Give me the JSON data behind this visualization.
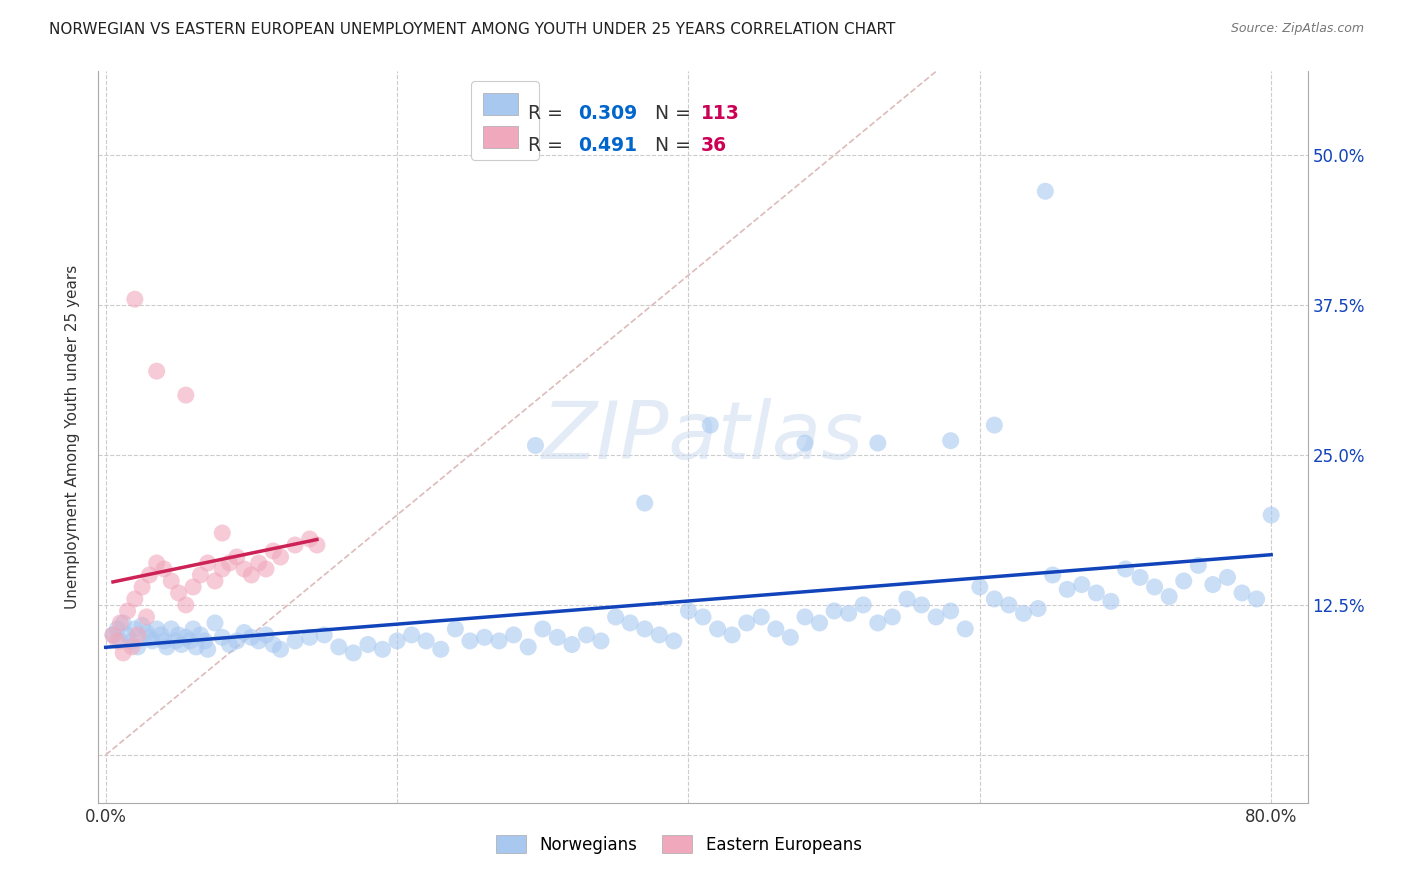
{
  "title": "NORWEGIAN VS EASTERN EUROPEAN UNEMPLOYMENT AMONG YOUTH UNDER 25 YEARS CORRELATION CHART",
  "source": "Source: ZipAtlas.com",
  "ylabel": "Unemployment Among Youth under 25 years",
  "xlim": [
    -0.005,
    0.825
  ],
  "ylim": [
    -0.04,
    0.57
  ],
  "xticks": [
    0.0,
    0.2,
    0.4,
    0.6,
    0.8
  ],
  "xticklabels": [
    "0.0%",
    "",
    "",
    "",
    "80.0%"
  ],
  "yticks": [
    0.0,
    0.125,
    0.25,
    0.375,
    0.5
  ],
  "yticklabels_right": [
    "",
    "12.5%",
    "25.0%",
    "37.5%",
    "50.0%"
  ],
  "bg_color": "#ffffff",
  "grid_color": "#cccccc",
  "watermark_text": "ZIPatlas",
  "norwegians_color": "#a8c8f0",
  "eastern_color": "#f0a8bc",
  "regression_blue": "#1144bb",
  "regression_pink": "#cc2255",
  "diagonal_color": "#ddbbbb",
  "R_blue": 0.309,
  "N_blue": 113,
  "R_pink": 0.491,
  "N_pink": 36,
  "legend_label_color": "#222222",
  "legend_value_color": "#0066cc",
  "legend_N_color": "#cc0055",
  "bottom_legend_norw": "Norwegians",
  "bottom_legend_east": "Eastern Europeans",
  "norw_x": [
    0.005,
    0.008,
    0.01,
    0.012,
    0.015,
    0.018,
    0.02,
    0.022,
    0.025,
    0.028,
    0.03,
    0.032,
    0.035,
    0.038,
    0.04,
    0.042,
    0.045,
    0.048,
    0.05,
    0.052,
    0.055,
    0.058,
    0.06,
    0.062,
    0.065,
    0.068,
    0.07,
    0.075,
    0.08,
    0.085,
    0.09,
    0.095,
    0.1,
    0.105,
    0.11,
    0.115,
    0.12,
    0.13,
    0.14,
    0.15,
    0.16,
    0.17,
    0.18,
    0.19,
    0.2,
    0.21,
    0.22,
    0.23,
    0.24,
    0.25,
    0.26,
    0.27,
    0.28,
    0.29,
    0.3,
    0.31,
    0.32,
    0.33,
    0.34,
    0.35,
    0.36,
    0.37,
    0.38,
    0.39,
    0.4,
    0.41,
    0.42,
    0.43,
    0.44,
    0.45,
    0.46,
    0.47,
    0.48,
    0.49,
    0.5,
    0.51,
    0.52,
    0.53,
    0.54,
    0.55,
    0.56,
    0.57,
    0.58,
    0.59,
    0.6,
    0.61,
    0.62,
    0.63,
    0.64,
    0.65,
    0.66,
    0.67,
    0.68,
    0.69,
    0.7,
    0.71,
    0.72,
    0.73,
    0.74,
    0.75,
    0.76,
    0.77,
    0.78,
    0.79,
    0.8,
    0.645,
    0.53,
    0.48,
    0.61,
    0.37,
    0.295,
    0.415,
    0.58
  ],
  "norw_y": [
    0.1,
    0.105,
    0.095,
    0.11,
    0.1,
    0.095,
    0.105,
    0.09,
    0.108,
    0.102,
    0.098,
    0.095,
    0.105,
    0.1,
    0.095,
    0.09,
    0.105,
    0.095,
    0.1,
    0.092,
    0.098,
    0.095,
    0.105,
    0.09,
    0.1,
    0.095,
    0.088,
    0.11,
    0.098,
    0.092,
    0.095,
    0.102,
    0.098,
    0.095,
    0.1,
    0.092,
    0.088,
    0.095,
    0.098,
    0.1,
    0.09,
    0.085,
    0.092,
    0.088,
    0.095,
    0.1,
    0.095,
    0.088,
    0.105,
    0.095,
    0.098,
    0.095,
    0.1,
    0.09,
    0.105,
    0.098,
    0.092,
    0.1,
    0.095,
    0.115,
    0.11,
    0.105,
    0.1,
    0.095,
    0.12,
    0.115,
    0.105,
    0.1,
    0.11,
    0.115,
    0.105,
    0.098,
    0.115,
    0.11,
    0.12,
    0.118,
    0.125,
    0.11,
    0.115,
    0.13,
    0.125,
    0.115,
    0.12,
    0.105,
    0.14,
    0.13,
    0.125,
    0.118,
    0.122,
    0.15,
    0.138,
    0.142,
    0.135,
    0.128,
    0.155,
    0.148,
    0.14,
    0.132,
    0.145,
    0.158,
    0.142,
    0.148,
    0.135,
    0.13,
    0.2,
    0.47,
    0.26,
    0.26,
    0.275,
    0.21,
    0.258,
    0.275,
    0.262
  ],
  "east_x": [
    0.005,
    0.008,
    0.01,
    0.012,
    0.015,
    0.018,
    0.02,
    0.022,
    0.025,
    0.028,
    0.03,
    0.035,
    0.04,
    0.045,
    0.05,
    0.055,
    0.06,
    0.065,
    0.07,
    0.075,
    0.08,
    0.085,
    0.09,
    0.095,
    0.1,
    0.105,
    0.11,
    0.115,
    0.12,
    0.13,
    0.14,
    0.145,
    0.02,
    0.035,
    0.055,
    0.08
  ],
  "east_y": [
    0.1,
    0.095,
    0.11,
    0.085,
    0.12,
    0.09,
    0.13,
    0.1,
    0.14,
    0.115,
    0.15,
    0.16,
    0.155,
    0.145,
    0.135,
    0.125,
    0.14,
    0.15,
    0.16,
    0.145,
    0.155,
    0.16,
    0.165,
    0.155,
    0.15,
    0.16,
    0.155,
    0.17,
    0.165,
    0.175,
    0.18,
    0.175,
    0.38,
    0.32,
    0.3,
    0.185
  ]
}
